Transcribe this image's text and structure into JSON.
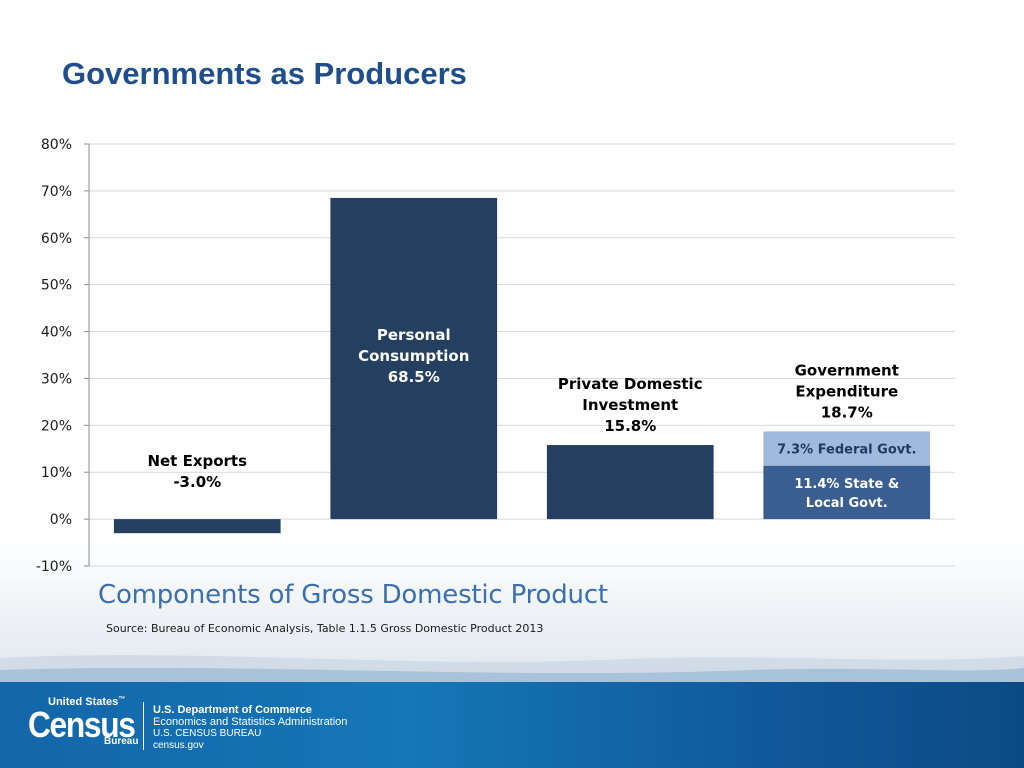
{
  "slide": {
    "title": "Governments as Producers",
    "caption": "Components of Gross Domestic Product",
    "source": "Source: Bureau of Economic Analysis, Table 1.1.5 Gross Domestic Product 2013"
  },
  "footer": {
    "logo_top": "United States",
    "logo_trademark": "™",
    "logo_main": "Census",
    "logo_bottom": "Bureau",
    "lines": [
      "U.S. Department of Commerce",
      "Economics and Statistics Administration",
      "U.S. CENSUS BUREAU",
      "census.gov"
    ]
  },
  "colors": {
    "title": "#1f4e8c",
    "bar_dark": "#243f60",
    "bar_state_local": "#395e8f",
    "bar_federal": "#9fbadc",
    "caption": "#3b6fae",
    "footer": "#1366a8"
  },
  "chart_data": {
    "type": "bar",
    "stacked": true,
    "ylim": [
      -10,
      80
    ],
    "yticks": [
      "80%",
      "70%",
      "60%",
      "50%",
      "40%",
      "30%",
      "20%",
      "10%",
      "0%",
      "-10%"
    ],
    "ytick_values": [
      80,
      70,
      60,
      50,
      40,
      30,
      20,
      10,
      0,
      -10
    ],
    "grid": true,
    "categories": [
      "Net Exports",
      "Personal Consumption",
      "Private Domestic Investment",
      "Government Expenditure"
    ],
    "bars": [
      {
        "category": "Net Exports",
        "value": -3.0,
        "label_lines": [
          "Net Exports",
          "-3.0%"
        ],
        "segments": [
          {
            "value": -3.0,
            "color": "#243f60",
            "label_lines": []
          }
        ]
      },
      {
        "category": "Personal Consumption",
        "value": 68.5,
        "label_lines": [
          "Personal",
          "Consumption",
          "68.5%"
        ],
        "label_inside": true,
        "segments": [
          {
            "value": 68.5,
            "color": "#243f60",
            "label_lines": []
          }
        ]
      },
      {
        "category": "Private Domestic Investment",
        "value": 15.8,
        "label_lines": [
          "Private Domestic",
          "Investment",
          "15.8%"
        ],
        "segments": [
          {
            "value": 15.8,
            "color": "#243f60",
            "label_lines": []
          }
        ]
      },
      {
        "category": "Government Expenditure",
        "value": 18.7,
        "label_lines": [
          "Government",
          "Expenditure",
          "18.7%"
        ],
        "segments": [
          {
            "value": 11.4,
            "color": "#395e8f",
            "label_lines": [
              "11.4% State &",
              "Local Govt."
            ],
            "text_color": "#ffffff"
          },
          {
            "value": 7.3,
            "color": "#9fbadc",
            "label_lines": [
              "7.3% Federal Govt."
            ],
            "text_color": "#1f3a63"
          }
        ]
      }
    ]
  }
}
